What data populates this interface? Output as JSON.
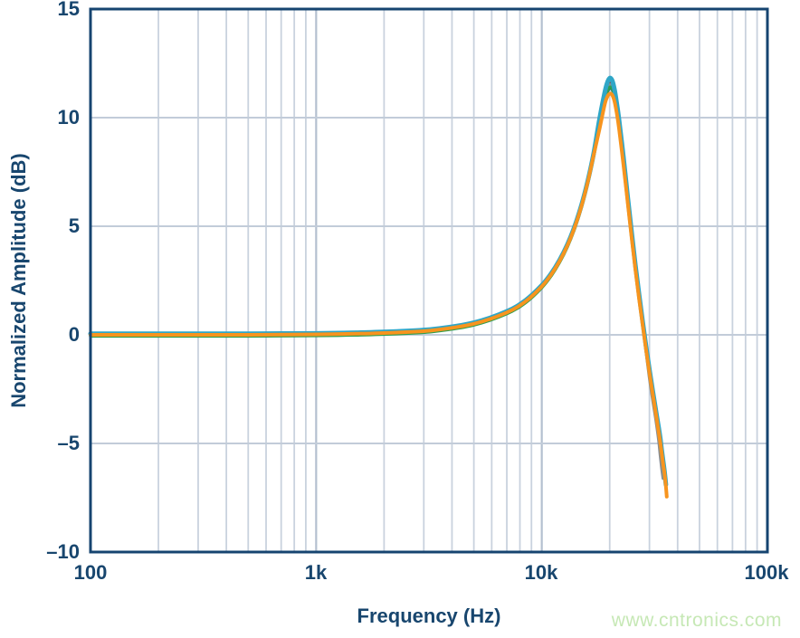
{
  "page": {
    "background": "#ffffff",
    "watermark": "www.cntronics.com",
    "watermark_color": "#c6e8b5"
  },
  "style": {
    "frame_color": "#164470",
    "label_color": "#18466e",
    "grid_minor_color": "#c9d2de",
    "grid_major_color": "#b4c0d0",
    "grid_horizontal_color": "#c2ccd9"
  },
  "chart_data": {
    "type": "line",
    "title": "",
    "xlabel": "Frequency (Hz)",
    "ylabel": "Normalized Amplitude (dB)",
    "x_scale": "log",
    "x_range": [
      100,
      100000
    ],
    "y_range": [
      -10,
      15
    ],
    "grid": true,
    "legend": "none",
    "x_tick_values": [
      100,
      1000,
      10000,
      100000
    ],
    "x_tick_labels": [
      "100",
      "1k",
      "10k",
      "100k"
    ],
    "y_tick_values": [
      15,
      10,
      5,
      0,
      -5,
      -10
    ],
    "y_tick_labels": [
      "15",
      "10",
      "5",
      "0",
      "–5",
      "–10"
    ],
    "description": "Six nearly-overlapping measured traces: flat 0 dB below ~2 kHz, resonant peak of ~+11 to +11.8 dB near 20 kHz, steep roll-off ending near 35 kHz at about -5 to -7.5 dB.",
    "x": [
      100,
      150,
      220,
      330,
      500,
      700,
      1000,
      1500,
      2200,
      3300,
      5000,
      7000,
      8500,
      10000,
      11000,
      12000,
      13000,
      14000,
      15000,
      16000,
      17000,
      18000,
      19000,
      19500,
      20000,
      20500,
      21000,
      21500,
      22000,
      23000,
      24000,
      25000,
      26000,
      27000,
      28000,
      29000,
      30000,
      31000,
      32000,
      33000,
      33500,
      34000,
      34500,
      35000,
      35500,
      35800
    ],
    "series": [
      {
        "name": "trace-navy",
        "color": "#2a5d87",
        "stroke_width": 3.2,
        "values": [
          -0.04,
          -0.04,
          -0.04,
          -0.04,
          -0.04,
          -0.03,
          -0.02,
          0.01,
          0.06,
          0.17,
          0.47,
          0.99,
          1.51,
          2.19,
          2.73,
          3.36,
          4.08,
          4.92,
          5.89,
          7.01,
          8.26,
          9.55,
          10.75,
          11.15,
          11.35,
          11.28,
          10.95,
          10.35,
          9.6,
          7.9,
          6.2,
          4.55,
          3.05,
          1.72,
          0.48,
          -0.68,
          -1.72,
          -2.68,
          -3.58,
          -4.45,
          -4.9,
          null,
          null,
          null,
          null,
          null
        ]
      },
      {
        "name": "trace-darkred",
        "color": "#9c3a2f",
        "stroke_width": 3.2,
        "values": [
          0.06,
          0.06,
          0.06,
          0.06,
          0.06,
          0.07,
          0.08,
          0.11,
          0.16,
          0.27,
          0.57,
          1.09,
          1.61,
          2.29,
          2.83,
          3.46,
          4.18,
          5.02,
          5.99,
          7.11,
          8.36,
          9.8,
          11.05,
          11.45,
          11.65,
          11.55,
          11.15,
          10.5,
          9.75,
          8.05,
          6.3,
          4.65,
          3.15,
          1.8,
          0.55,
          -0.6,
          -1.65,
          -2.6,
          -3.5,
          -4.35,
          -4.8,
          -5.25,
          -5.7,
          null,
          null,
          null
        ]
      },
      {
        "name": "trace-gray",
        "color": "#8a8c8f",
        "stroke_width": 3.6,
        "values": [
          0.03,
          0.03,
          0.03,
          0.03,
          0.03,
          0.04,
          0.05,
          0.08,
          0.13,
          0.24,
          0.54,
          1.06,
          1.58,
          2.26,
          2.8,
          3.43,
          4.15,
          4.99,
          5.96,
          7.08,
          8.33,
          9.7,
          10.9,
          11.3,
          11.5,
          11.42,
          11.05,
          10.45,
          9.7,
          8.0,
          6.25,
          4.6,
          3.1,
          1.75,
          0.5,
          -0.75,
          -1.95,
          -2.95,
          -3.85,
          -4.85,
          -5.5,
          -6.1,
          -6.6,
          null,
          null,
          null
        ]
      },
      {
        "name": "trace-green",
        "color": "#2f9e4e",
        "stroke_width": 3.4,
        "values": [
          -0.06,
          -0.06,
          -0.06,
          -0.06,
          -0.06,
          -0.05,
          -0.04,
          -0.01,
          0.04,
          0.15,
          0.45,
          0.97,
          1.49,
          2.17,
          2.71,
          3.34,
          4.06,
          4.9,
          5.87,
          6.99,
          8.24,
          9.6,
          10.8,
          11.2,
          11.4,
          11.32,
          11.0,
          10.4,
          9.65,
          7.95,
          6.2,
          4.55,
          3.05,
          1.7,
          0.5,
          -0.65,
          -1.7,
          -2.65,
          -3.55,
          -4.4,
          -4.85,
          -5.35,
          -5.75,
          -6.15,
          null,
          null
        ]
      },
      {
        "name": "trace-cyan",
        "color": "#2fa6c7",
        "stroke_width": 5,
        "values": [
          0.05,
          0.05,
          0.05,
          0.05,
          0.05,
          0.06,
          0.07,
          0.1,
          0.15,
          0.26,
          0.56,
          1.08,
          1.6,
          2.28,
          2.82,
          3.45,
          4.17,
          5.01,
          5.98,
          7.1,
          8.38,
          9.9,
          11.15,
          11.6,
          11.82,
          11.72,
          11.3,
          10.65,
          9.9,
          8.2,
          6.4,
          4.75,
          3.2,
          1.85,
          0.6,
          -0.55,
          -1.6,
          -2.55,
          -3.45,
          -4.3,
          -4.75,
          -5.3,
          -5.8,
          -6.3,
          -6.9,
          null
        ]
      },
      {
        "name": "trace-orange",
        "color": "#f7941e",
        "stroke_width": 4,
        "values": [
          0,
          0,
          0,
          0,
          0,
          0.01,
          0.02,
          0.05,
          0.1,
          0.21,
          0.51,
          1.03,
          1.55,
          2.23,
          2.77,
          3.4,
          4.12,
          4.96,
          5.93,
          7.05,
          8.3,
          9.45,
          10.6,
          10.95,
          11.1,
          11.05,
          10.75,
          10.2,
          9.5,
          7.85,
          6.15,
          4.5,
          3.0,
          1.65,
          0.45,
          -0.7,
          -1.75,
          -2.7,
          -3.6,
          -4.5,
          -4.95,
          -5.45,
          -5.95,
          -6.4,
          -7.0,
          -7.45
        ]
      }
    ],
    "peak_annotation": {
      "frequency_hz": 20000,
      "peak_db_range": [
        11.1,
        11.8
      ]
    }
  }
}
